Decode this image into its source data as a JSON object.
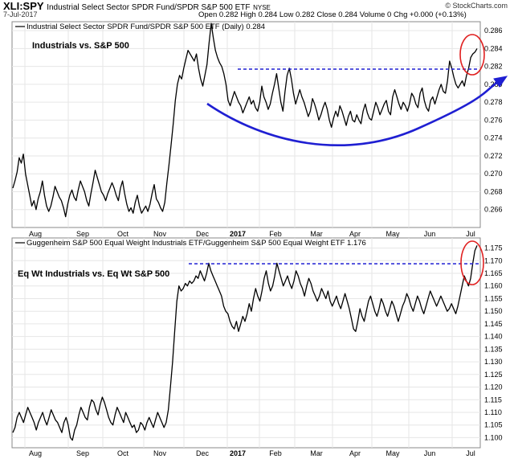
{
  "header": {
    "symbol": "XLI:SPY",
    "name": "Industrial Select Sector SPDR Fund/SPDR S&P 500 ETF",
    "exchange": "NYSE",
    "date": "7-Jul-2017",
    "ohlc": "Open 0.282  High 0.284  Low 0.282  Close 0.284  Volume 0  Chg +0.000 (+0.13%)",
    "brand": "© StockCharts.com"
  },
  "chart_data": [
    {
      "type": "line",
      "legend": "Industrial Select Sector SPDR Fund/SPDR S&P 500 ETF (Daily) 0.284",
      "annotation": "Industrials vs. S&P 500",
      "ylim": [
        0.264,
        0.287
      ],
      "yticks": [
        "0.286",
        "0.284",
        "0.282",
        "0.280",
        "0.278",
        "0.276",
        "0.274",
        "0.272",
        "0.270",
        "0.268",
        "0.266"
      ],
      "x_month_labels": [
        "Aug",
        "Sep",
        "Oct",
        "Nov",
        "Dec",
        "2017",
        "Feb",
        "Mar",
        "Apr",
        "May",
        "Jun",
        "Jul"
      ],
      "reference_line_value": 0.2817,
      "series_color": "#000000",
      "trend_color": "#1f1fd2",
      "resistance_color": "#1f1fd2",
      "highlight_color": "#e02020",
      "series": [
        {
          "values": [
            0.2684,
            0.2692,
            0.2702,
            0.2718,
            0.2712,
            0.2722,
            0.27,
            0.2688,
            0.2676,
            0.2664,
            0.267,
            0.266,
            0.2672,
            0.268,
            0.2692,
            0.2676,
            0.2664,
            0.2658,
            0.2664,
            0.2674,
            0.2686,
            0.268,
            0.2674,
            0.267,
            0.2662,
            0.2652,
            0.2666,
            0.2676,
            0.2682,
            0.2674,
            0.267,
            0.2682,
            0.2692,
            0.2686,
            0.268,
            0.267,
            0.2664,
            0.2678,
            0.269,
            0.2704,
            0.2696,
            0.2688,
            0.268,
            0.2676,
            0.267,
            0.2678,
            0.2684,
            0.269,
            0.2684,
            0.2676,
            0.267,
            0.2684,
            0.2692,
            0.2678,
            0.2666,
            0.2658,
            0.2662,
            0.2656,
            0.2668,
            0.2676,
            0.2664,
            0.2656,
            0.266,
            0.2664,
            0.2658,
            0.2666,
            0.2678,
            0.2688,
            0.2672,
            0.2668,
            0.2662,
            0.2658,
            0.2668,
            0.269,
            0.271,
            0.2732,
            0.2756,
            0.2782,
            0.28,
            0.281,
            0.2806,
            0.2818,
            0.2828,
            0.2838,
            0.2834,
            0.283,
            0.2826,
            0.2834,
            0.2818,
            0.2806,
            0.2798,
            0.281,
            0.2822,
            0.2846,
            0.2868,
            0.2852,
            0.2838,
            0.283,
            0.2824,
            0.282,
            0.2812,
            0.28,
            0.2782,
            0.2776,
            0.2784,
            0.2792,
            0.2786,
            0.278,
            0.2776,
            0.2768,
            0.2774,
            0.278,
            0.2786,
            0.2778,
            0.2782,
            0.2774,
            0.277,
            0.278,
            0.2798,
            0.2786,
            0.278,
            0.2772,
            0.2778,
            0.279,
            0.28,
            0.2812,
            0.2796,
            0.278,
            0.277,
            0.2792,
            0.281,
            0.2818,
            0.2806,
            0.279,
            0.2778,
            0.2786,
            0.2794,
            0.2786,
            0.278,
            0.2772,
            0.2764,
            0.277,
            0.2784,
            0.2778,
            0.277,
            0.276,
            0.2766,
            0.2774,
            0.278,
            0.2772,
            0.276,
            0.2752,
            0.2762,
            0.277,
            0.2764,
            0.2776,
            0.277,
            0.2762,
            0.2754,
            0.2764,
            0.277,
            0.276,
            0.2758,
            0.2766,
            0.276,
            0.2756,
            0.277,
            0.2778,
            0.2768,
            0.2762,
            0.276,
            0.277,
            0.278,
            0.2774,
            0.2766,
            0.2772,
            0.2778,
            0.2782,
            0.277,
            0.2766,
            0.2786,
            0.2794,
            0.2786,
            0.2778,
            0.2772,
            0.278,
            0.2776,
            0.277,
            0.2778,
            0.279,
            0.2786,
            0.2778,
            0.2774,
            0.279,
            0.2796,
            0.2782,
            0.2774,
            0.277,
            0.2782,
            0.2786,
            0.2778,
            0.2786,
            0.2794,
            0.28,
            0.2792,
            0.279,
            0.2804,
            0.2826,
            0.2818,
            0.2808,
            0.28,
            0.2796,
            0.28,
            0.2804,
            0.2798,
            0.281,
            0.2818,
            0.283,
            0.2834,
            0.2836,
            0.284
          ]
        }
      ]
    },
    {
      "type": "line",
      "legend": "Guggenheim S&P 500 Equal Weight Industrials ETF/Guggenheim S&P 500 Equal Weight ETF 1.176",
      "annotation": "Eq Wt Industrials vs. Eq Wt S&P 500",
      "ylim": [
        1.096,
        1.179
      ],
      "yticks": [
        "1.175",
        "1.170",
        "1.165",
        "1.160",
        "1.155",
        "1.150",
        "1.145",
        "1.140",
        "1.135",
        "1.130",
        "1.125",
        "1.120",
        "1.115",
        "1.110",
        "1.105",
        "1.100"
      ],
      "x_month_labels": [
        "Aug",
        "Sep",
        "Oct",
        "Nov",
        "Dec",
        "2017",
        "Feb",
        "Mar",
        "Apr",
        "May",
        "Jun",
        "Jul"
      ],
      "reference_line_value": 1.1688,
      "series_color": "#000000",
      "resistance_color": "#1f1fd2",
      "highlight_color": "#e02020",
      "series": [
        {
          "values": [
            1.102,
            1.104,
            1.108,
            1.11,
            1.108,
            1.106,
            1.109,
            1.112,
            1.11,
            1.108,
            1.106,
            1.103,
            1.106,
            1.108,
            1.11,
            1.107,
            1.105,
            1.108,
            1.111,
            1.109,
            1.107,
            1.106,
            1.104,
            1.102,
            1.106,
            1.108,
            1.105,
            1.1,
            1.099,
            1.103,
            1.105,
            1.109,
            1.112,
            1.11,
            1.108,
            1.107,
            1.112,
            1.115,
            1.114,
            1.111,
            1.109,
            1.113,
            1.116,
            1.114,
            1.111,
            1.108,
            1.106,
            1.105,
            1.109,
            1.112,
            1.11,
            1.108,
            1.106,
            1.11,
            1.108,
            1.106,
            1.104,
            1.105,
            1.102,
            1.103,
            1.106,
            1.105,
            1.103,
            1.106,
            1.108,
            1.106,
            1.104,
            1.107,
            1.11,
            1.108,
            1.106,
            1.104,
            1.106,
            1.111,
            1.12,
            1.13,
            1.142,
            1.154,
            1.16,
            1.158,
            1.159,
            1.161,
            1.16,
            1.162,
            1.161,
            1.162,
            1.164,
            1.163,
            1.166,
            1.164,
            1.162,
            1.165,
            1.169,
            1.166,
            1.164,
            1.162,
            1.16,
            1.158,
            1.156,
            1.152,
            1.15,
            1.149,
            1.146,
            1.144,
            1.143,
            1.146,
            1.142,
            1.145,
            1.148,
            1.146,
            1.149,
            1.153,
            1.15,
            1.155,
            1.159,
            1.156,
            1.154,
            1.158,
            1.163,
            1.166,
            1.161,
            1.158,
            1.16,
            1.164,
            1.169,
            1.166,
            1.163,
            1.16,
            1.162,
            1.164,
            1.161,
            1.159,
            1.162,
            1.166,
            1.164,
            1.161,
            1.159,
            1.156,
            1.16,
            1.163,
            1.161,
            1.158,
            1.156,
            1.154,
            1.156,
            1.159,
            1.157,
            1.155,
            1.158,
            1.154,
            1.152,
            1.154,
            1.156,
            1.153,
            1.151,
            1.154,
            1.157,
            1.154,
            1.151,
            1.147,
            1.143,
            1.142,
            1.146,
            1.151,
            1.148,
            1.146,
            1.15,
            1.154,
            1.156,
            1.153,
            1.15,
            1.148,
            1.151,
            1.155,
            1.153,
            1.15,
            1.148,
            1.151,
            1.154,
            1.152,
            1.149,
            1.146,
            1.149,
            1.152,
            1.154,
            1.157,
            1.155,
            1.152,
            1.15,
            1.153,
            1.156,
            1.154,
            1.151,
            1.149,
            1.152,
            1.155,
            1.158,
            1.156,
            1.154,
            1.152,
            1.154,
            1.156,
            1.154,
            1.152,
            1.15,
            1.151,
            1.153,
            1.151,
            1.149,
            1.152,
            1.156,
            1.16,
            1.164,
            1.162,
            1.16,
            1.163,
            1.169,
            1.174,
            1.176
          ]
        }
      ]
    }
  ]
}
